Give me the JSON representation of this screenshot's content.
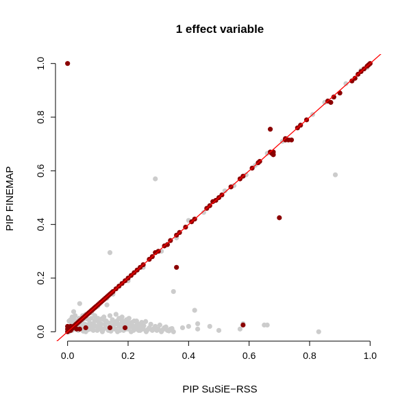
{
  "chart_data": {
    "type": "scatter",
    "title": "1 effect variable",
    "xlabel": "PIP SuSiE−RSS",
    "ylabel": "PIP FINEMAP",
    "xlim": [
      -0.04,
      1.04
    ],
    "ylim": [
      -0.035,
      1.035
    ],
    "x_ticks": [
      0.0,
      0.2,
      0.4,
      0.6,
      0.8,
      1.0
    ],
    "y_ticks": [
      0.0,
      0.2,
      0.4,
      0.6,
      0.8,
      1.0
    ],
    "x_tick_labels": [
      "0.0",
      "0.2",
      "0.4",
      "0.6",
      "0.8",
      "1.0"
    ],
    "y_tick_labels": [
      "0.0",
      "0.2",
      "0.4",
      "0.6",
      "0.8",
      "1.0"
    ],
    "reference_line": {
      "type": "identity",
      "color": "#ff0000"
    },
    "colors": {
      "null_points": "#cccccc",
      "causal_points": "#8b0000",
      "reference_line": "#ff0000"
    },
    "grid": false,
    "series": [
      {
        "color": "#cccccc",
        "points": [
          [
            0.0,
            0.0
          ],
          [
            0.005,
            0.01
          ],
          [
            0.01,
            0.02
          ],
          [
            0.01,
            0.045
          ],
          [
            0.015,
            0.005
          ],
          [
            0.02,
            0.03
          ],
          [
            0.025,
            0.01
          ],
          [
            0.03,
            0.04
          ],
          [
            0.035,
            0.005
          ],
          [
            0.04,
            0.02
          ],
          [
            0.045,
            0.035
          ],
          [
            0.05,
            0.01
          ],
          [
            0.055,
            0.05
          ],
          [
            0.06,
            0.0
          ],
          [
            0.065,
            0.025
          ],
          [
            0.07,
            0.045
          ],
          [
            0.075,
            0.01
          ],
          [
            0.08,
            0.03
          ],
          [
            0.085,
            0.005
          ],
          [
            0.09,
            0.04
          ],
          [
            0.095,
            0.02
          ],
          [
            0.1,
            0.05
          ],
          [
            0.105,
            0.01
          ],
          [
            0.11,
            0.03
          ],
          [
            0.115,
            0.0
          ],
          [
            0.12,
            0.045
          ],
          [
            0.125,
            0.015
          ],
          [
            0.13,
            0.035
          ],
          [
            0.135,
            0.005
          ],
          [
            0.14,
            0.06
          ],
          [
            0.145,
            0.02
          ],
          [
            0.15,
            0.04
          ],
          [
            0.155,
            0.01
          ],
          [
            0.16,
            0.03
          ],
          [
            0.165,
            0.0
          ],
          [
            0.17,
            0.05
          ],
          [
            0.175,
            0.015
          ],
          [
            0.18,
            0.035
          ],
          [
            0.185,
            0.005
          ],
          [
            0.19,
            0.025
          ],
          [
            0.195,
            0.045
          ],
          [
            0.2,
            0.01
          ],
          [
            0.205,
            0.03
          ],
          [
            0.21,
            0.0
          ],
          [
            0.215,
            0.02
          ],
          [
            0.22,
            0.04
          ],
          [
            0.225,
            0.01
          ],
          [
            0.23,
            0.03
          ],
          [
            0.235,
            0.005
          ],
          [
            0.24,
            0.02
          ],
          [
            0.245,
            0.035
          ],
          [
            0.25,
            0.01
          ],
          [
            0.26,
            0.0
          ],
          [
            0.27,
            0.015
          ],
          [
            0.28,
            0.005
          ],
          [
            0.29,
            0.02
          ],
          [
            0.3,
            0.01
          ],
          [
            0.31,
            0.0
          ],
          [
            0.32,
            0.015
          ],
          [
            0.33,
            0.005
          ],
          [
            0.34,
            0.01
          ],
          [
            0.35,
            0.0
          ],
          [
            0.06,
            0.065
          ],
          [
            0.09,
            0.06
          ],
          [
            0.12,
            0.055
          ],
          [
            0.16,
            0.065
          ],
          [
            0.04,
            0.105
          ],
          [
            0.1,
            0.095
          ],
          [
            0.13,
            0.1
          ],
          [
            0.02,
            0.075
          ],
          [
            0.08,
            0.07
          ],
          [
            0.18,
            0.055
          ],
          [
            0.005,
            0.04
          ],
          [
            0.015,
            0.055
          ],
          [
            0.025,
            0.06
          ],
          [
            0.03,
            0.015
          ],
          [
            0.05,
            0.03
          ],
          [
            0.07,
            0.02
          ],
          [
            0.11,
            0.015
          ],
          [
            0.14,
            0.025
          ],
          [
            0.17,
            0.02
          ],
          [
            0.2,
            0.035
          ],
          [
            0.22,
            0.02
          ],
          [
            0.24,
            0.005
          ],
          [
            0.38,
            0.015
          ],
          [
            0.4,
            0.02
          ],
          [
            0.42,
            0.08
          ],
          [
            0.43,
            0.03
          ],
          [
            0.43,
            0.01
          ],
          [
            0.47,
            0.02
          ],
          [
            0.5,
            0.005
          ],
          [
            0.57,
            0.01
          ],
          [
            0.58,
            0.03
          ],
          [
            0.65,
            0.025
          ],
          [
            0.66,
            0.025
          ],
          [
            0.83,
            0.0
          ],
          [
            0.885,
            0.585
          ],
          [
            0.29,
            0.57
          ],
          [
            0.14,
            0.295
          ],
          [
            0.35,
            0.15
          ],
          [
            0.13,
            0.125
          ],
          [
            0.09,
            0.09
          ],
          [
            0.05,
            0.06
          ],
          [
            0.15,
            0.14
          ],
          [
            0.2,
            0.19
          ],
          [
            0.25,
            0.24
          ],
          [
            0.31,
            0.3
          ],
          [
            0.36,
            0.35
          ],
          [
            0.37,
            0.37
          ],
          [
            0.4,
            0.415
          ],
          [
            0.45,
            0.445
          ],
          [
            0.52,
            0.525
          ],
          [
            0.55,
            0.545
          ],
          [
            0.59,
            0.585
          ],
          [
            0.62,
            0.62
          ],
          [
            0.66,
            0.665
          ],
          [
            0.71,
            0.71
          ],
          [
            0.77,
            0.77
          ],
          [
            0.81,
            0.81
          ],
          [
            0.85,
            0.855
          ],
          [
            0.88,
            0.875
          ],
          [
            0.92,
            0.925
          ],
          [
            0.95,
            0.945
          ],
          [
            0.97,
            0.975
          ],
          [
            0.99,
            0.985
          ],
          [
            1.0,
            1.0
          ],
          [
            0.005,
            0.0
          ],
          [
            0.012,
            0.035
          ],
          [
            0.018,
            0.012
          ],
          [
            0.022,
            0.045
          ],
          [
            0.028,
            0.025
          ],
          [
            0.033,
            0.008
          ],
          [
            0.038,
            0.05
          ],
          [
            0.043,
            0.018
          ],
          [
            0.048,
            0.04
          ],
          [
            0.052,
            0.002
          ],
          [
            0.058,
            0.028
          ],
          [
            0.063,
            0.048
          ],
          [
            0.068,
            0.008
          ],
          [
            0.073,
            0.032
          ],
          [
            0.078,
            0.05
          ],
          [
            0.083,
            0.015
          ],
          [
            0.088,
            0.025
          ],
          [
            0.093,
            0.045
          ],
          [
            0.098,
            0.005
          ],
          [
            0.103,
            0.035
          ],
          [
            0.108,
            0.022
          ],
          [
            0.113,
            0.048
          ],
          [
            0.118,
            0.008
          ],
          [
            0.123,
            0.028
          ],
          [
            0.128,
            0.04
          ],
          [
            0.133,
            0.015
          ],
          [
            0.138,
            0.032
          ],
          [
            0.143,
            0.002
          ],
          [
            0.148,
            0.045
          ],
          [
            0.153,
            0.025
          ],
          [
            0.158,
            0.01
          ],
          [
            0.163,
            0.04
          ],
          [
            0.168,
            0.028
          ],
          [
            0.173,
            0.005
          ],
          [
            0.178,
            0.045
          ],
          [
            0.183,
            0.02
          ],
          [
            0.188,
            0.038
          ],
          [
            0.193,
            0.01
          ],
          [
            0.198,
            0.025
          ],
          [
            0.203,
            0.05
          ],
          [
            0.208,
            0.018
          ],
          [
            0.213,
            0.035
          ],
          [
            0.218,
            0.005
          ],
          [
            0.228,
            0.04
          ],
          [
            0.232,
            0.015
          ],
          [
            0.238,
            0.028
          ],
          [
            0.242,
            0.01
          ],
          [
            0.252,
            0.022
          ],
          [
            0.258,
            0.038
          ],
          [
            0.265,
            0.008
          ],
          [
            0.275,
            0.028
          ],
          [
            0.285,
            0.012
          ],
          [
            0.295,
            0.005
          ],
          [
            0.305,
            0.025
          ],
          [
            0.315,
            0.008
          ],
          [
            0.325,
            0.018
          ],
          [
            0.335,
            0.003
          ],
          [
            0.345,
            0.012
          ]
        ]
      },
      {
        "color": "#8b0000",
        "points": [
          [
            0.0,
            1.0
          ],
          [
            0.0,
            0.0
          ],
          [
            0.002,
            0.005
          ],
          [
            0.005,
            0.008
          ],
          [
            0.008,
            0.01
          ],
          [
            0.01,
            0.015
          ],
          [
            0.015,
            0.018
          ],
          [
            0.02,
            0.02
          ],
          [
            0.025,
            0.025
          ],
          [
            0.03,
            0.03
          ],
          [
            0.035,
            0.035
          ],
          [
            0.04,
            0.04
          ],
          [
            0.045,
            0.045
          ],
          [
            0.05,
            0.05
          ],
          [
            0.055,
            0.055
          ],
          [
            0.06,
            0.06
          ],
          [
            0.065,
            0.065
          ],
          [
            0.07,
            0.07
          ],
          [
            0.075,
            0.075
          ],
          [
            0.08,
            0.08
          ],
          [
            0.085,
            0.085
          ],
          [
            0.09,
            0.09
          ],
          [
            0.095,
            0.095
          ],
          [
            0.1,
            0.1
          ],
          [
            0.105,
            0.105
          ],
          [
            0.11,
            0.11
          ],
          [
            0.115,
            0.115
          ],
          [
            0.12,
            0.12
          ],
          [
            0.125,
            0.125
          ],
          [
            0.13,
            0.13
          ],
          [
            0.135,
            0.135
          ],
          [
            0.14,
            0.14
          ],
          [
            0.145,
            0.145
          ],
          [
            0.15,
            0.15
          ],
          [
            0.16,
            0.16
          ],
          [
            0.17,
            0.17
          ],
          [
            0.18,
            0.18
          ],
          [
            0.19,
            0.19
          ],
          [
            0.2,
            0.2
          ],
          [
            0.21,
            0.21
          ],
          [
            0.22,
            0.22
          ],
          [
            0.23,
            0.23
          ],
          [
            0.24,
            0.24
          ],
          [
            0.25,
            0.25
          ],
          [
            0.27,
            0.27
          ],
          [
            0.28,
            0.28
          ],
          [
            0.29,
            0.295
          ],
          [
            0.3,
            0.3
          ],
          [
            0.32,
            0.32
          ],
          [
            0.33,
            0.325
          ],
          [
            0.34,
            0.34
          ],
          [
            0.36,
            0.36
          ],
          [
            0.37,
            0.37
          ],
          [
            0.39,
            0.39
          ],
          [
            0.41,
            0.41
          ],
          [
            0.42,
            0.42
          ],
          [
            0.46,
            0.46
          ],
          [
            0.47,
            0.47
          ],
          [
            0.48,
            0.485
          ],
          [
            0.49,
            0.49
          ],
          [
            0.5,
            0.5
          ],
          [
            0.51,
            0.51
          ],
          [
            0.54,
            0.54
          ],
          [
            0.57,
            0.57
          ],
          [
            0.58,
            0.58
          ],
          [
            0.61,
            0.61
          ],
          [
            0.63,
            0.63
          ],
          [
            0.635,
            0.635
          ],
          [
            0.67,
            0.67
          ],
          [
            0.68,
            0.67
          ],
          [
            0.72,
            0.72
          ],
          [
            0.73,
            0.715
          ],
          [
            0.74,
            0.715
          ],
          [
            0.76,
            0.76
          ],
          [
            0.77,
            0.77
          ],
          [
            0.79,
            0.79
          ],
          [
            0.86,
            0.86
          ],
          [
            0.87,
            0.855
          ],
          [
            0.88,
            0.875
          ],
          [
            0.9,
            0.89
          ],
          [
            0.94,
            0.935
          ],
          [
            0.95,
            0.945
          ],
          [
            0.96,
            0.96
          ],
          [
            0.97,
            0.97
          ],
          [
            0.98,
            0.98
          ],
          [
            0.99,
            0.99
          ],
          [
            1.0,
            1.0
          ],
          [
            0.995,
            0.995
          ],
          [
            0.67,
            0.755
          ],
          [
            0.7,
            0.425
          ],
          [
            0.36,
            0.24
          ],
          [
            0.58,
            0.025
          ],
          [
            0.19,
            0.015
          ],
          [
            0.14,
            0.015
          ],
          [
            0.06,
            0.015
          ],
          [
            0.04,
            0.01
          ],
          [
            0.03,
            0.01
          ],
          [
            0.01,
            0.02
          ],
          [
            0.0,
            0.02
          ],
          [
            0.0,
            0.01
          ],
          [
            0.68,
            0.66
          ],
          [
            0.675,
            0.665
          ],
          [
            0.72,
            0.715
          ],
          [
            0.01,
            0.005
          ],
          [
            0.015,
            0.012
          ],
          [
            0.022,
            0.022
          ],
          [
            0.028,
            0.028
          ],
          [
            0.032,
            0.032
          ],
          [
            0.038,
            0.038
          ],
          [
            0.042,
            0.042
          ],
          [
            0.048,
            0.048
          ],
          [
            0.052,
            0.052
          ],
          [
            0.058,
            0.058
          ],
          [
            0.062,
            0.062
          ],
          [
            0.068,
            0.068
          ],
          [
            0.072,
            0.072
          ],
          [
            0.078,
            0.078
          ],
          [
            0.082,
            0.082
          ],
          [
            0.088,
            0.088
          ],
          [
            0.092,
            0.092
          ]
        ]
      }
    ]
  }
}
